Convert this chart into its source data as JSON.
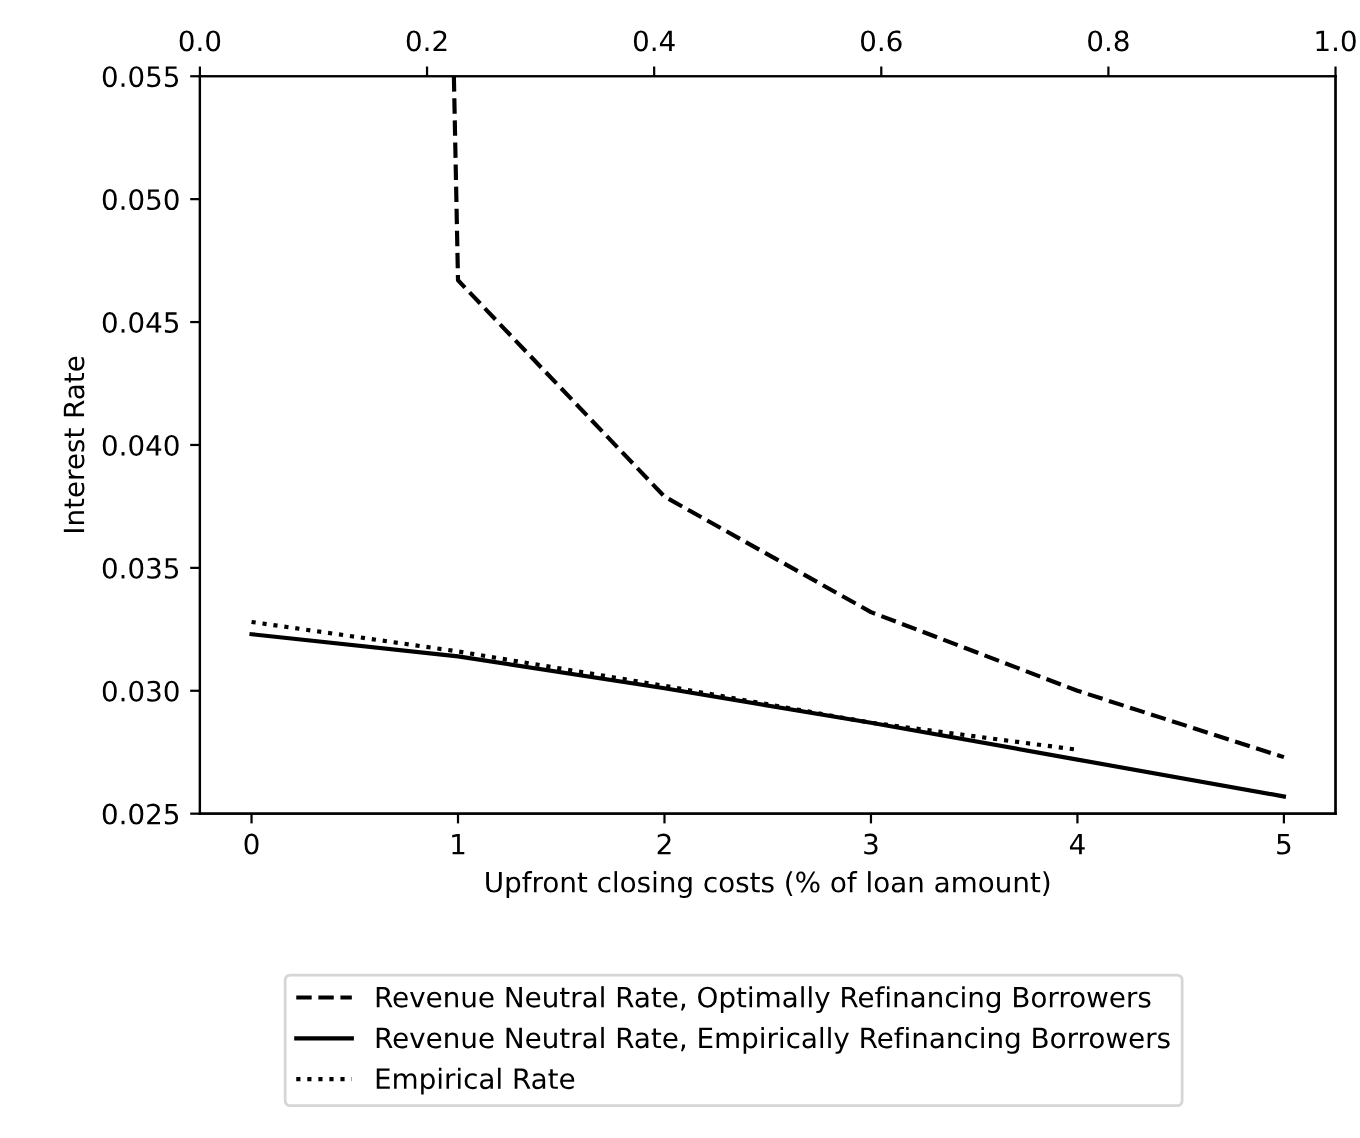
{
  "chart_data": {
    "type": "line",
    "xlabel": "Upfront closing costs (% of loan amount)",
    "ylabel": "Interest Rate",
    "xlim": [
      -0.25,
      5.25
    ],
    "xticks": [
      0,
      1,
      2,
      3,
      4,
      5
    ],
    "ylim": [
      0.025,
      0.055
    ],
    "yticks": [
      {
        "value": 0.025,
        "label": "0.025"
      },
      {
        "value": 0.03,
        "label": "0.030"
      },
      {
        "value": 0.035,
        "label": "0.035"
      },
      {
        "value": 0.04,
        "label": "0.040"
      },
      {
        "value": 0.045,
        "label": "0.045"
      },
      {
        "value": 0.05,
        "label": "0.050"
      },
      {
        "value": 0.055,
        "label": "0.055"
      }
    ],
    "x2lim": [
      0,
      1
    ],
    "x2ticks": [
      {
        "value": 0,
        "label": "0.0"
      },
      {
        "value": 0.2,
        "label": "0.2"
      },
      {
        "value": 0.4,
        "label": "0.4"
      },
      {
        "value": 0.6,
        "label": "0.6"
      },
      {
        "value": 0.8,
        "label": "0.8"
      },
      {
        "value": 1,
        "label": "1.0"
      }
    ],
    "legend": "bottom",
    "grid": false,
    "series": [
      {
        "name": "Revenue Neutral Rate, Optimally Refinancing Borrowers",
        "color": "#000000",
        "line_style": "dashed",
        "x": [
          0.98,
          1,
          2,
          3,
          4,
          5
        ],
        "values": [
          0.055,
          0.0467,
          0.0379,
          0.0332,
          0.03,
          0.0273
        ]
      },
      {
        "name": "Revenue Neutral Rate, Empirically Refinancing Borrowers",
        "color": "#000000",
        "line_style": "solid",
        "x": [
          0,
          1,
          2,
          3,
          4,
          5
        ],
        "values": [
          0.0323,
          0.0314,
          0.0301,
          0.0287,
          0.0272,
          0.0257
        ]
      },
      {
        "name": "Empirical Rate",
        "color": "#000000",
        "line_style": "dotted",
        "x": [
          0,
          1,
          2,
          3,
          4
        ],
        "values": [
          0.0328,
          0.0316,
          0.0302,
          0.0287,
          0.0276
        ]
      }
    ]
  }
}
